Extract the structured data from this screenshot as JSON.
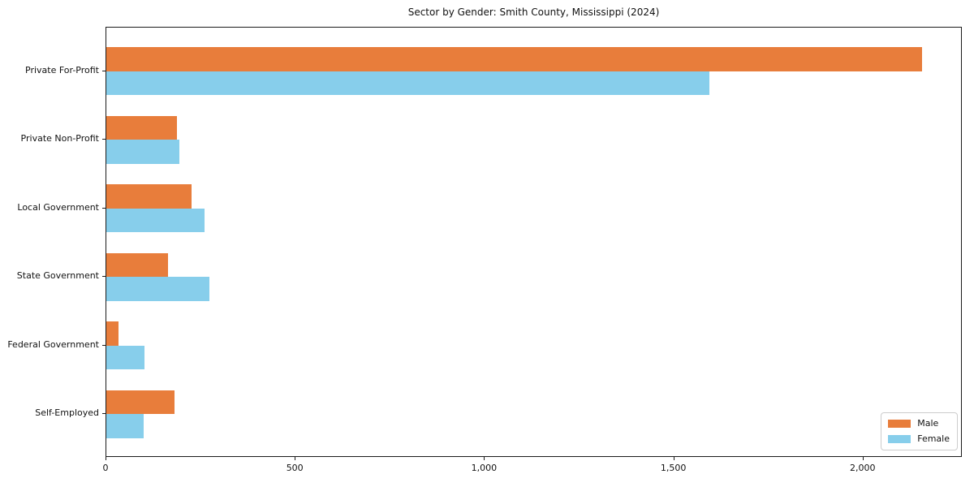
{
  "chart_data": {
    "type": "bar",
    "orientation": "horizontal",
    "title": "Sector by Gender: Smith County, Mississippi (2024)",
    "categories": [
      "Private For-Profit",
      "Private Non-Profit",
      "Local Government",
      "State Government",
      "Federal Government",
      "Self-Employed"
    ],
    "series": [
      {
        "name": "Male",
        "color": "#e87d3b",
        "values": [
          2154,
          186,
          225,
          162,
          32,
          181
        ]
      },
      {
        "name": "Female",
        "color": "#87ceeb",
        "values": [
          1593,
          194,
          259,
          273,
          101,
          99
        ]
      }
    ],
    "xlabel": "",
    "ylabel": "",
    "xlim": [
      0,
      2262
    ],
    "xticks": [
      0,
      500,
      1000,
      1500,
      2000
    ],
    "xticklabels": [
      "0",
      "500",
      "1,000",
      "1,500",
      "2,000"
    ],
    "grid": false,
    "legend_position": "lower right",
    "axis_color": "#1a1a1a",
    "background_color": "#ffffff"
  }
}
